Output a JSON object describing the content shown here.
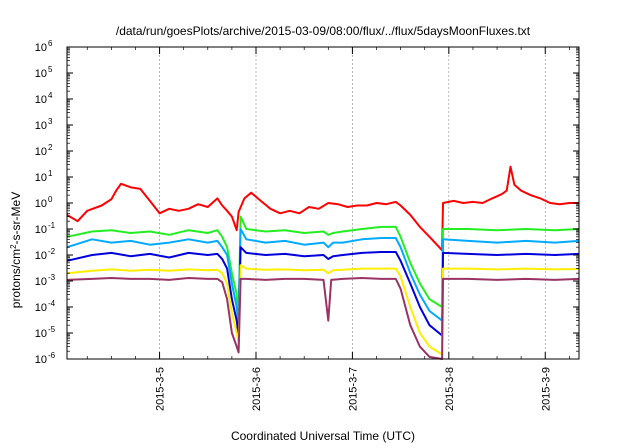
{
  "chart_data": {
    "type": "line",
    "title": "/data/run/goesPlots/archive/2015-03-09/08:00/flux/../flux/5daysMoonFluxes.txt",
    "xlabel": "Coordinated Universal Time (UTC)",
    "ylabel_main": "protons/cm",
    "ylabel_sup": "2",
    "ylabel_rest": "-s-sr-MeV",
    "y_scale": "log",
    "ylim_exp": [
      -6,
      6
    ],
    "y_ticks": [
      {
        "exp": -6,
        "base": "10",
        "sup": "-6"
      },
      {
        "exp": -5,
        "base": "10",
        "sup": "-5"
      },
      {
        "exp": -4,
        "base": "10",
        "sup": "-4"
      },
      {
        "exp": -3,
        "base": "10",
        "sup": "-3"
      },
      {
        "exp": -2,
        "base": "10",
        "sup": "-2"
      },
      {
        "exp": -1,
        "base": "10",
        "sup": "-1"
      },
      {
        "exp": 0,
        "base": "10",
        "sup": "0"
      },
      {
        "exp": 1,
        "base": "10",
        "sup": "1"
      },
      {
        "exp": 2,
        "base": "10",
        "sup": "2"
      },
      {
        "exp": 3,
        "base": "10",
        "sup": "3"
      },
      {
        "exp": 4,
        "base": "10",
        "sup": "4"
      },
      {
        "exp": 5,
        "base": "10",
        "sup": "5"
      },
      {
        "exp": 6,
        "base": "10",
        "sup": "6"
      }
    ],
    "x_range_days": [
      -1.96,
      3.35
    ],
    "x_ticks": [
      {
        "day": -1,
        "label": "2015-3-5"
      },
      {
        "day": 0,
        "label": "2015-3-6"
      },
      {
        "day": 1,
        "label": "2015-3-7"
      },
      {
        "day": 2,
        "label": "2015-3-8"
      },
      {
        "day": 3,
        "label": "2015-3-9"
      }
    ],
    "x_tick_minor_days": [
      -1.75,
      -1.5,
      -1.25,
      -0.75,
      -0.5,
      -0.25,
      0.25,
      0.5,
      0.75,
      1.25,
      1.5,
      1.75,
      2.25,
      2.5,
      2.75,
      3.25
    ],
    "grid": true,
    "series": [
      {
        "color": "#ff0000",
        "points": [
          [
            -1.96,
            0.35
          ],
          [
            -1.85,
            0.2
          ],
          [
            -1.75,
            0.5
          ],
          [
            -1.6,
            0.8
          ],
          [
            -1.5,
            1.4
          ],
          [
            -1.45,
            3
          ],
          [
            -1.4,
            5.5
          ],
          [
            -1.3,
            4
          ],
          [
            -1.2,
            3.5
          ],
          [
            -1.1,
            1.2
          ],
          [
            -1,
            0.4
          ],
          [
            -0.9,
            0.6
          ],
          [
            -0.8,
            0.5
          ],
          [
            -0.7,
            0.6
          ],
          [
            -0.6,
            0.9
          ],
          [
            -0.5,
            0.7
          ],
          [
            -0.4,
            1.5
          ],
          [
            -0.35,
            0.8
          ],
          [
            -0.3,
            0.5
          ],
          [
            -0.25,
            0.3
          ],
          [
            -0.2,
            0.09
          ],
          [
            -0.18,
            0.45
          ],
          [
            -0.12,
            1.5
          ],
          [
            -0.05,
            2.5
          ],
          [
            0.05,
            1.2
          ],
          [
            0.15,
            0.6
          ],
          [
            0.25,
            0.4
          ],
          [
            0.35,
            0.5
          ],
          [
            0.45,
            0.4
          ],
          [
            0.55,
            0.7
          ],
          [
            0.65,
            0.6
          ],
          [
            0.75,
            1.0
          ],
          [
            0.85,
            0.9
          ],
          [
            0.95,
            0.7
          ],
          [
            1.05,
            0.8
          ],
          [
            1.15,
            0.8
          ],
          [
            1.25,
            1.0
          ],
          [
            1.35,
            0.9
          ],
          [
            1.45,
            1.1
          ],
          [
            1.5,
            0.8
          ],
          [
            1.6,
            0.35
          ],
          [
            1.7,
            0.12
          ],
          [
            1.8,
            0.05
          ],
          [
            1.9,
            0.02
          ],
          [
            1.93,
            0.015
          ],
          [
            1.94,
            1.0
          ],
          [
            2.05,
            1.2
          ],
          [
            2.15,
            1.0
          ],
          [
            2.25,
            1.1
          ],
          [
            2.35,
            1.0
          ],
          [
            2.45,
            1.5
          ],
          [
            2.55,
            2.2
          ],
          [
            2.6,
            3
          ],
          [
            2.64,
            25
          ],
          [
            2.68,
            5
          ],
          [
            2.75,
            3
          ],
          [
            2.85,
            2
          ],
          [
            2.95,
            1.5
          ],
          [
            3.05,
            1.0
          ],
          [
            3.15,
            0.9
          ],
          [
            3.25,
            1.0
          ],
          [
            3.35,
            1.0
          ]
        ]
      },
      {
        "color": "#22ee22",
        "points": [
          [
            -1.96,
            0.05
          ],
          [
            -1.7,
            0.08
          ],
          [
            -1.5,
            0.09
          ],
          [
            -1.3,
            0.07
          ],
          [
            -1.1,
            0.08
          ],
          [
            -0.9,
            0.06
          ],
          [
            -0.7,
            0.09
          ],
          [
            -0.5,
            0.07
          ],
          [
            -0.4,
            0.09
          ],
          [
            -0.35,
            0.05
          ],
          [
            -0.3,
            0.02
          ],
          [
            -0.25,
            0.002
          ],
          [
            -0.2,
            0.0003
          ],
          [
            -0.18,
            4e-05
          ],
          [
            -0.16,
            0.3
          ],
          [
            -0.1,
            0.1
          ],
          [
            0.1,
            0.08
          ],
          [
            0.3,
            0.09
          ],
          [
            0.5,
            0.07
          ],
          [
            0.7,
            0.08
          ],
          [
            0.75,
            0.06
          ],
          [
            0.8,
            0.07
          ],
          [
            0.9,
            0.08
          ],
          [
            1.1,
            0.1
          ],
          [
            1.3,
            0.12
          ],
          [
            1.45,
            0.12
          ],
          [
            1.5,
            0.05
          ],
          [
            1.6,
            0.005
          ],
          [
            1.7,
            0.0008
          ],
          [
            1.8,
            0.0002
          ],
          [
            1.93,
            0.0001
          ],
          [
            1.94,
            0.1
          ],
          [
            2.2,
            0.1
          ],
          [
            2.5,
            0.09
          ],
          [
            2.8,
            0.1
          ],
          [
            3.1,
            0.09
          ],
          [
            3.35,
            0.1
          ]
        ]
      },
      {
        "color": "#00aaff",
        "points": [
          [
            -1.96,
            0.02
          ],
          [
            -1.7,
            0.04
          ],
          [
            -1.5,
            0.03
          ],
          [
            -1.3,
            0.035
          ],
          [
            -1.1,
            0.025
          ],
          [
            -0.9,
            0.03
          ],
          [
            -0.7,
            0.04
          ],
          [
            -0.5,
            0.03
          ],
          [
            -0.4,
            0.035
          ],
          [
            -0.35,
            0.02
          ],
          [
            -0.3,
            0.01
          ],
          [
            -0.25,
            0.0008
          ],
          [
            -0.2,
            0.0001
          ],
          [
            -0.18,
            2e-05
          ],
          [
            -0.16,
            0.1
          ],
          [
            -0.1,
            0.04
          ],
          [
            0.1,
            0.03
          ],
          [
            0.3,
            0.035
          ],
          [
            0.5,
            0.025
          ],
          [
            0.7,
            0.03
          ],
          [
            0.75,
            0.02
          ],
          [
            0.8,
            0.03
          ],
          [
            0.9,
            0.03
          ],
          [
            1.1,
            0.04
          ],
          [
            1.3,
            0.045
          ],
          [
            1.45,
            0.045
          ],
          [
            1.5,
            0.02
          ],
          [
            1.6,
            0.002
          ],
          [
            1.7,
            0.0003
          ],
          [
            1.8,
            7e-05
          ],
          [
            1.93,
            3e-05
          ],
          [
            1.94,
            0.04
          ],
          [
            2.2,
            0.035
          ],
          [
            2.5,
            0.03
          ],
          [
            2.8,
            0.035
          ],
          [
            3.1,
            0.03
          ],
          [
            3.35,
            0.035
          ]
        ]
      },
      {
        "color": "#0000dd",
        "points": [
          [
            -1.96,
            0.006
          ],
          [
            -1.7,
            0.01
          ],
          [
            -1.5,
            0.012
          ],
          [
            -1.3,
            0.009
          ],
          [
            -1.1,
            0.011
          ],
          [
            -0.9,
            0.008
          ],
          [
            -0.7,
            0.012
          ],
          [
            -0.5,
            0.01
          ],
          [
            -0.4,
            0.011
          ],
          [
            -0.35,
            0.007
          ],
          [
            -0.3,
            0.003
          ],
          [
            -0.25,
            0.0002
          ],
          [
            -0.2,
            3e-05
          ],
          [
            -0.18,
            8e-06
          ],
          [
            -0.16,
            0.02
          ],
          [
            -0.1,
            0.012
          ],
          [
            0.1,
            0.01
          ],
          [
            0.3,
            0.011
          ],
          [
            0.5,
            0.009
          ],
          [
            0.7,
            0.01
          ],
          [
            0.75,
            0.007
          ],
          [
            0.8,
            0.009
          ],
          [
            0.9,
            0.01
          ],
          [
            1.1,
            0.012
          ],
          [
            1.3,
            0.013
          ],
          [
            1.45,
            0.013
          ],
          [
            1.5,
            0.006
          ],
          [
            1.6,
            0.0008
          ],
          [
            1.7,
            0.0001
          ],
          [
            1.8,
            2e-05
          ],
          [
            1.93,
            8e-06
          ],
          [
            1.94,
            0.012
          ],
          [
            2.2,
            0.011
          ],
          [
            2.5,
            0.01
          ],
          [
            2.8,
            0.011
          ],
          [
            3.1,
            0.01
          ],
          [
            3.35,
            0.011
          ]
        ]
      },
      {
        "color": "#ffee00",
        "points": [
          [
            -1.96,
            0.002
          ],
          [
            -1.7,
            0.0025
          ],
          [
            -1.5,
            0.0028
          ],
          [
            -1.3,
            0.0025
          ],
          [
            -1.1,
            0.0027
          ],
          [
            -0.9,
            0.0025
          ],
          [
            -0.7,
            0.0028
          ],
          [
            -0.5,
            0.0026
          ],
          [
            -0.4,
            0.0027
          ],
          [
            -0.35,
            0.002
          ],
          [
            -0.3,
            0.0008
          ],
          [
            -0.25,
            6e-05
          ],
          [
            -0.2,
            1e-05
          ],
          [
            -0.18,
            4e-06
          ],
          [
            -0.16,
            0.004
          ],
          [
            -0.1,
            0.003
          ],
          [
            0.1,
            0.0027
          ],
          [
            0.3,
            0.0028
          ],
          [
            0.5,
            0.0026
          ],
          [
            0.7,
            0.0027
          ],
          [
            0.75,
            0.002
          ],
          [
            0.8,
            0.0026
          ],
          [
            0.9,
            0.0027
          ],
          [
            1.1,
            0.003
          ],
          [
            1.3,
            0.003
          ],
          [
            1.45,
            0.003
          ],
          [
            1.5,
            0.0015
          ],
          [
            1.6,
            0.0001
          ],
          [
            1.7,
            1e-05
          ],
          [
            1.8,
            3e-06
          ],
          [
            1.93,
            1.5e-06
          ],
          [
            1.94,
            0.003
          ],
          [
            2.2,
            0.003
          ],
          [
            2.5,
            0.0028
          ],
          [
            2.8,
            0.003
          ],
          [
            3.1,
            0.0028
          ],
          [
            3.35,
            0.0029
          ]
        ]
      },
      {
        "color": "#993366",
        "points": [
          [
            -1.96,
            0.0011
          ],
          [
            -1.7,
            0.0012
          ],
          [
            -1.5,
            0.0013
          ],
          [
            -1.3,
            0.0012
          ],
          [
            -1.1,
            0.0012
          ],
          [
            -0.9,
            0.0011
          ],
          [
            -0.7,
            0.0013
          ],
          [
            -0.5,
            0.0012
          ],
          [
            -0.4,
            0.0012
          ],
          [
            -0.35,
            0.0009
          ],
          [
            -0.3,
            0.0002
          ],
          [
            -0.25,
            1e-05
          ],
          [
            -0.2,
            3e-06
          ],
          [
            -0.18,
            1.8e-06
          ],
          [
            -0.16,
            0.0012
          ],
          [
            -0.1,
            0.0012
          ],
          [
            0.1,
            0.0011
          ],
          [
            0.3,
            0.0012
          ],
          [
            0.5,
            0.0012
          ],
          [
            0.7,
            0.0011
          ],
          [
            0.75,
            3e-05
          ],
          [
            0.78,
            0.0011
          ],
          [
            0.9,
            0.0012
          ],
          [
            1.1,
            0.0013
          ],
          [
            1.3,
            0.0012
          ],
          [
            1.45,
            0.0012
          ],
          [
            1.5,
            0.0005
          ],
          [
            1.6,
            2e-05
          ],
          [
            1.7,
            3e-06
          ],
          [
            1.8,
            1.2e-06
          ],
          [
            1.93,
            1e-06
          ],
          [
            1.94,
            0.0012
          ],
          [
            2.2,
            0.0012
          ],
          [
            2.5,
            0.0011
          ],
          [
            2.8,
            0.0012
          ],
          [
            3.1,
            0.0011
          ],
          [
            3.35,
            0.0012
          ]
        ]
      }
    ]
  }
}
